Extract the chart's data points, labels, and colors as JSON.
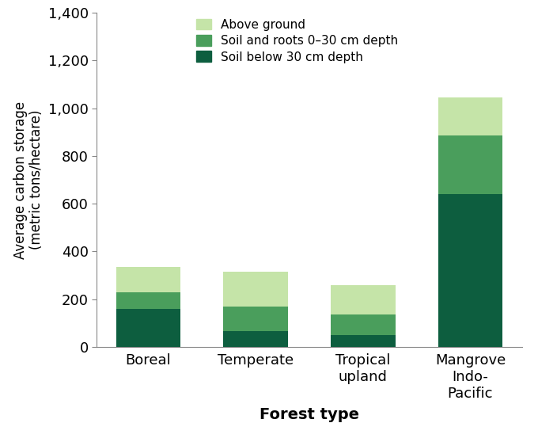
{
  "categories": [
    "Boreal",
    "Temperate",
    "Tropical\nupland",
    "Mangrove\nIndo-\nPacific"
  ],
  "soil_below_30": [
    160,
    65,
    50,
    640
  ],
  "soil_roots_0_30": [
    70,
    105,
    85,
    245
  ],
  "above_ground": [
    105,
    145,
    125,
    160
  ],
  "colors": {
    "soil_below_30": "#0d5e3f",
    "soil_roots_0_30": "#4a9e5c",
    "above_ground": "#c5e4a8"
  },
  "legend_labels": [
    "Above ground",
    "Soil and roots 0–30 cm depth",
    "Soil below 30 cm depth"
  ],
  "xlabel": "Forest type",
  "ylabel": "Average carbon storage\n(metric tons/hectare)",
  "ylim": [
    0,
    1400
  ],
  "yticks": [
    0,
    200,
    400,
    600,
    800,
    1000,
    1200,
    1400
  ],
  "ytick_labels": [
    "0",
    "200",
    "400",
    "600",
    "800",
    "1,000",
    "1,200",
    "1,400"
  ],
  "bar_width": 0.6,
  "background_color": "#ffffff"
}
